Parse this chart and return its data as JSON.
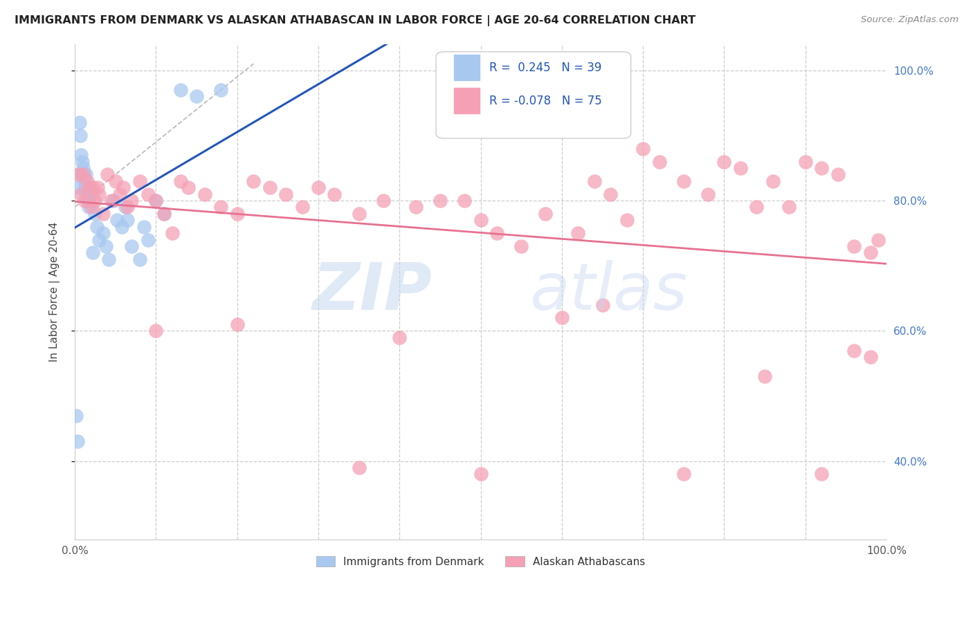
{
  "title": "IMMIGRANTS FROM DENMARK VS ALASKAN ATHABASCAN IN LABOR FORCE | AGE 20-64 CORRELATION CHART",
  "source": "Source: ZipAtlas.com",
  "ylabel": "In Labor Force | Age 20-64",
  "denmark_color": "#a8c8f0",
  "athabascan_color": "#f5a0b5",
  "denmark_line_color": "#2255bb",
  "athabascan_line_color": "#e87090",
  "watermark_zip": "ZIP",
  "watermark_atlas": "atlas",
  "xlim": [
    0.0,
    1.0
  ],
  "ylim": [
    0.28,
    1.04
  ],
  "yticks": [
    0.4,
    0.6,
    0.8,
    1.0
  ],
  "ytick_labels_right": [
    "40.0%",
    "60.0%",
    "80.0%",
    "100.0%"
  ],
  "denmark_points_x": [
    0.002,
    0.003,
    0.004,
    0.005,
    0.006,
    0.007,
    0.008,
    0.009,
    0.01,
    0.011,
    0.012,
    0.013,
    0.014,
    0.015,
    0.016,
    0.017,
    0.018,
    0.02,
    0.022,
    0.025,
    0.027,
    0.03,
    0.035,
    0.038,
    0.042,
    0.048,
    0.052,
    0.058,
    0.062,
    0.065,
    0.07,
    0.08,
    0.085,
    0.09,
    0.1,
    0.11,
    0.13,
    0.15,
    0.18
  ],
  "denmark_points_y": [
    0.47,
    0.43,
    0.82,
    0.84,
    0.92,
    0.9,
    0.87,
    0.86,
    0.85,
    0.84,
    0.83,
    0.82,
    0.84,
    0.81,
    0.8,
    0.79,
    0.82,
    0.81,
    0.72,
    0.78,
    0.76,
    0.74,
    0.75,
    0.73,
    0.71,
    0.8,
    0.77,
    0.76,
    0.79,
    0.77,
    0.73,
    0.71,
    0.76,
    0.74,
    0.8,
    0.78,
    0.97,
    0.96,
    0.97
  ],
  "athabascan_points_x": [
    0.005,
    0.008,
    0.01,
    0.012,
    0.015,
    0.018,
    0.02,
    0.022,
    0.025,
    0.028,
    0.03,
    0.035,
    0.04,
    0.045,
    0.05,
    0.055,
    0.06,
    0.065,
    0.07,
    0.08,
    0.09,
    0.1,
    0.11,
    0.12,
    0.13,
    0.14,
    0.16,
    0.18,
    0.2,
    0.22,
    0.24,
    0.26,
    0.28,
    0.3,
    0.32,
    0.35,
    0.38,
    0.4,
    0.42,
    0.45,
    0.48,
    0.5,
    0.52,
    0.55,
    0.58,
    0.6,
    0.62,
    0.64,
    0.66,
    0.68,
    0.7,
    0.72,
    0.75,
    0.78,
    0.8,
    0.82,
    0.84,
    0.86,
    0.88,
    0.9,
    0.92,
    0.94,
    0.96,
    0.98,
    0.99,
    0.1,
    0.2,
    0.35,
    0.5,
    0.65,
    0.75,
    0.85,
    0.92,
    0.96,
    0.98
  ],
  "athabascan_points_y": [
    0.84,
    0.81,
    0.84,
    0.8,
    0.83,
    0.82,
    0.79,
    0.82,
    0.8,
    0.82,
    0.81,
    0.78,
    0.84,
    0.8,
    0.83,
    0.81,
    0.82,
    0.79,
    0.8,
    0.83,
    0.81,
    0.8,
    0.78,
    0.75,
    0.83,
    0.82,
    0.81,
    0.79,
    0.78,
    0.83,
    0.82,
    0.81,
    0.79,
    0.82,
    0.81,
    0.78,
    0.8,
    0.59,
    0.79,
    0.8,
    0.8,
    0.77,
    0.75,
    0.73,
    0.78,
    0.62,
    0.75,
    0.83,
    0.81,
    0.77,
    0.88,
    0.86,
    0.83,
    0.81,
    0.86,
    0.85,
    0.79,
    0.83,
    0.79,
    0.86,
    0.85,
    0.84,
    0.73,
    0.72,
    0.74,
    0.6,
    0.61,
    0.39,
    0.38,
    0.64,
    0.38,
    0.53,
    0.38,
    0.57,
    0.56
  ]
}
